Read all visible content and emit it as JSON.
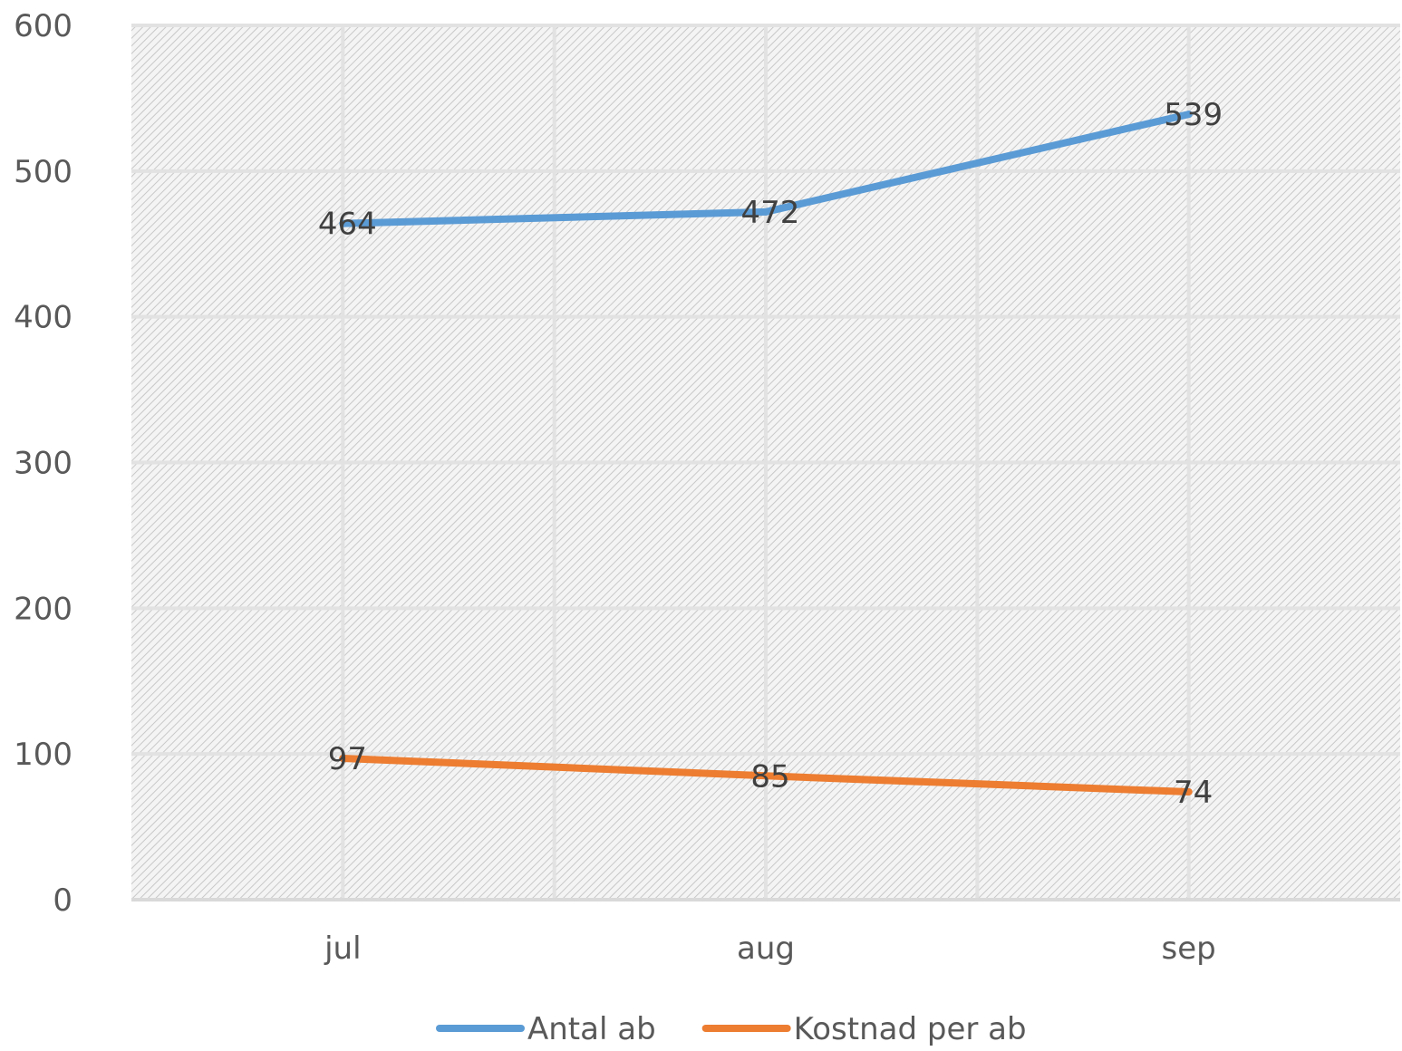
{
  "chart_data": {
    "type": "line",
    "title": "",
    "xlabel": "",
    "ylabel": "",
    "categories": [
      "jul",
      "aug",
      "sep"
    ],
    "ylim": [
      0,
      600
    ],
    "yticks": [
      0,
      100,
      200,
      300,
      400,
      500,
      600
    ],
    "grid": true,
    "plot_background": "diagonal-hatch",
    "legend_position": "bottom",
    "series": [
      {
        "name": "Antal ab",
        "color": "#5b9bd5",
        "values": [
          464,
          472,
          539
        ],
        "data_labels": [
          "464",
          "472",
          "539"
        ]
      },
      {
        "name": "Kostnad per ab",
        "color": "#ed7d31",
        "values": [
          97,
          85,
          74
        ],
        "data_labels": [
          "97",
          "85",
          "74"
        ]
      }
    ]
  }
}
